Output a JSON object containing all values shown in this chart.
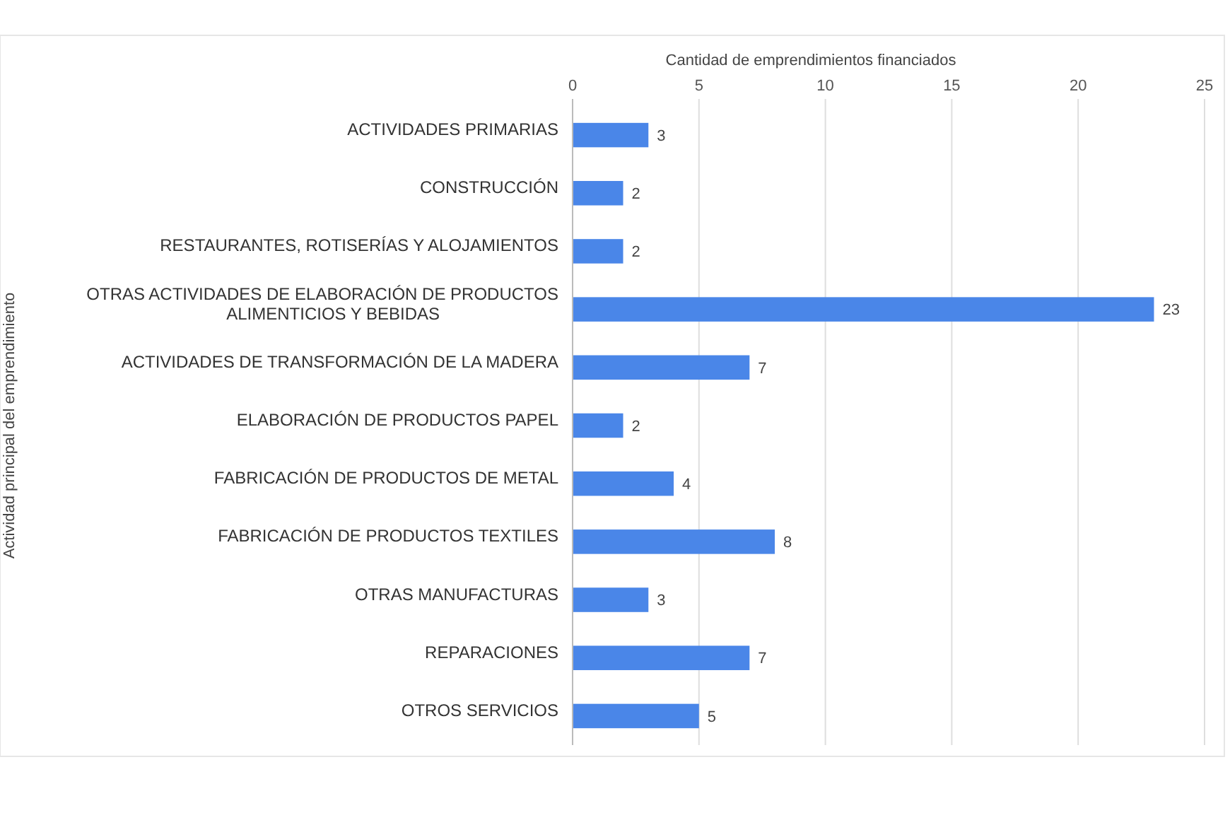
{
  "chart_data": {
    "type": "bar",
    "orientation": "horizontal",
    "xlabel": "Cantidad de emprendimientos financiados",
    "ylabel": "Actividad principal del emprendimiento",
    "categories": [
      "ACTIVIDADES PRIMARIAS",
      "CONSTRUCCIÓN",
      "RESTAURANTES, ROTISERÍAS Y ALOJAMIENTOS",
      "OTRAS ACTIVIDADES DE ELABORACIÓN DE PRODUCTOS ALIMENTICIOS Y BEBIDAS",
      "ACTIVIDADES DE TRANSFORMACIÓN DE LA MADERA",
      "ELABORACIÓN DE PRODUCTOS PAPEL",
      "FABRICACIÓN DE PRODUCTOS DE METAL",
      "FABRICACIÓN DE PRODUCTOS TEXTILES",
      "OTRAS MANUFACTURAS",
      "REPARACIONES",
      "OTROS SERVICIOS"
    ],
    "values": [
      3,
      2,
      2,
      23,
      7,
      2,
      4,
      8,
      3,
      7,
      5
    ],
    "color": "#4a86e8",
    "xlim": [
      0,
      25
    ],
    "xticks": [
      0,
      5,
      10,
      15,
      20,
      25
    ],
    "grid": "x",
    "data_labels": true
  }
}
